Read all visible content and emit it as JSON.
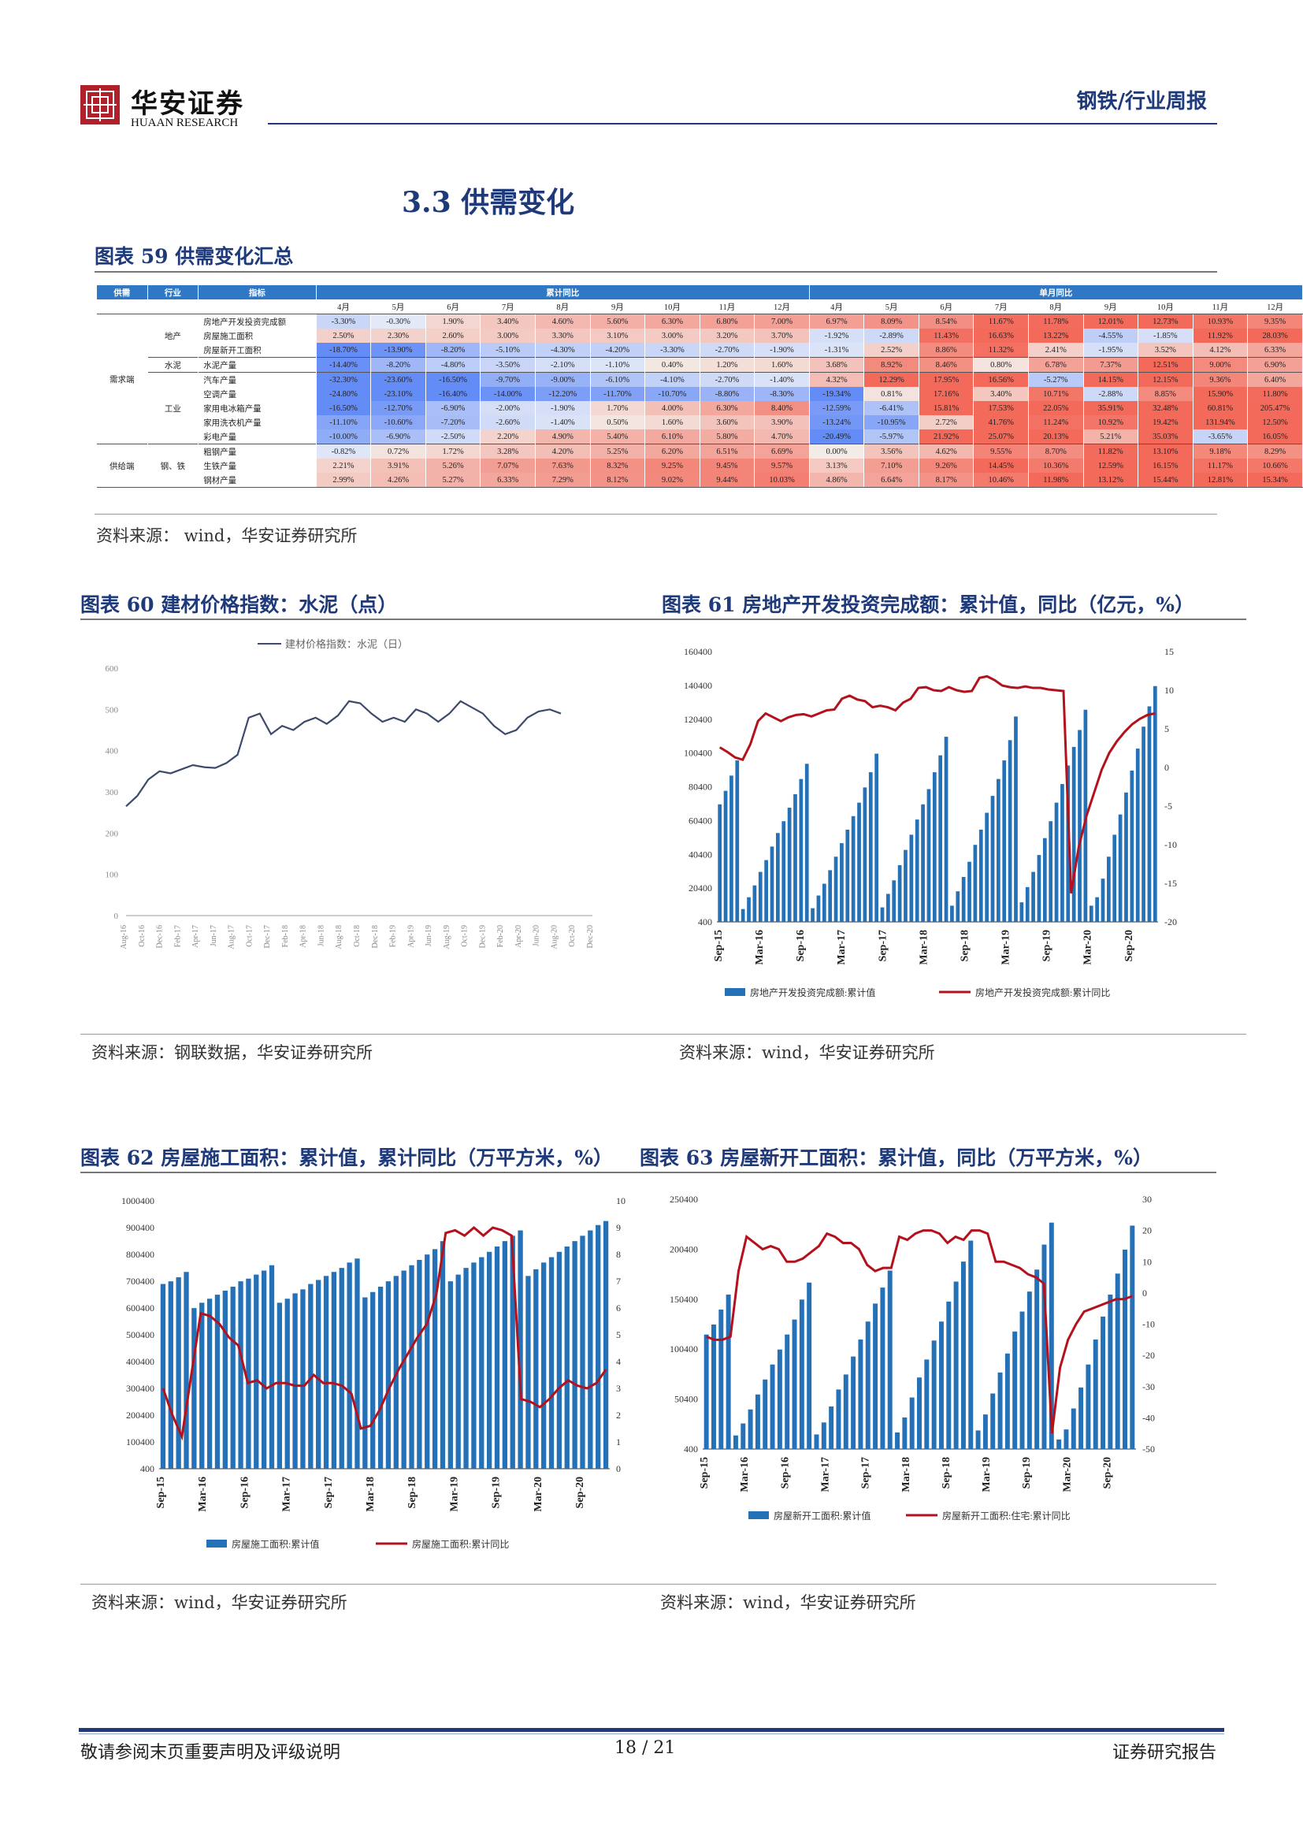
{
  "header": {
    "logo_cn": "华安证券",
    "logo_en": "HUAAN RESEARCH",
    "category": "钢铁/行业周报"
  },
  "section_title": "3.3 供需变化",
  "figure59": {
    "title": "图表 59  供需变化汇总",
    "col_supply": "供需",
    "col_industry": "行业",
    "col_indicator": "指标",
    "group_cum": "累计同比",
    "group_month": "单月同比",
    "months": [
      "4月",
      "5月",
      "6月",
      "7月",
      "8月",
      "9月",
      "10月",
      "11月",
      "12月",
      "4月",
      "5月",
      "6月",
      "7月",
      "8月",
      "9月",
      "10月",
      "11月",
      "12月"
    ],
    "demand_label": "需求端",
    "supply_label": "供给端",
    "rows": [
      {
        "industry": "",
        "name": "房地产开发投资完成额",
        "values": [
          "-3.30%",
          "-0.30%",
          "1.90%",
          "3.40%",
          "4.60%",
          "5.60%",
          "6.30%",
          "6.80%",
          "7.00%",
          "6.97%",
          "8.09%",
          "8.54%",
          "11.67%",
          "11.78%",
          "12.01%",
          "12.73%",
          "10.93%",
          "9.35%"
        ]
      },
      {
        "industry": "地产",
        "name": "房屋施工面积",
        "values": [
          "2.50%",
          "2.30%",
          "2.60%",
          "3.00%",
          "3.30%",
          "3.10%",
          "3.00%",
          "3.20%",
          "3.70%",
          "-1.92%",
          "-2.89%",
          "11.43%",
          "16.63%",
          "13.22%",
          "-4.55%",
          "-1.85%",
          "11.92%",
          "28.03%"
        ]
      },
      {
        "industry": "",
        "name": "房屋新开工面积",
        "values": [
          "-18.70%",
          "-13.90%",
          "-8.20%",
          "-5.10%",
          "-4.30%",
          "-4.20%",
          "-3.30%",
          "-2.70%",
          "-1.90%",
          "-1.31%",
          "2.52%",
          "8.86%",
          "11.32%",
          "2.41%",
          "-1.95%",
          "3.52%",
          "4.12%",
          "6.33%"
        ]
      },
      {
        "industry": "水泥",
        "name": "水泥产量",
        "values": [
          "-14.40%",
          "-8.20%",
          "-4.80%",
          "-3.50%",
          "-2.10%",
          "-1.10%",
          "0.40%",
          "1.20%",
          "1.60%",
          "3.68%",
          "8.92%",
          "8.46%",
          "0.80%",
          "6.78%",
          "7.37%",
          "12.51%",
          "9.00%",
          "6.90%"
        ]
      },
      {
        "industry": "",
        "name": "汽车产量",
        "values": [
          "-32.30%",
          "-23.60%",
          "-16.50%",
          "-9.70%",
          "-9.00%",
          "-6.10%",
          "-4.10%",
          "-2.70%",
          "-1.40%",
          "4.32%",
          "12.29%",
          "17.95%",
          "16.56%",
          "-5.27%",
          "14.15%",
          "12.15%",
          "9.36%",
          "6.40%"
        ]
      },
      {
        "industry": "",
        "name": "空调产量",
        "values": [
          "-24.80%",
          "-23.10%",
          "-16.40%",
          "-14.00%",
          "-12.20%",
          "-11.70%",
          "-10.70%",
          "-8.80%",
          "-8.30%",
          "-19.34%",
          "0.81%",
          "17.16%",
          "3.40%",
          "10.71%",
          "-2.88%",
          "8.85%",
          "15.90%",
          "11.80%"
        ]
      },
      {
        "industry": "工业",
        "name": "家用电冰箱产量",
        "values": [
          "-16.50%",
          "-12.70%",
          "-6.90%",
          "-2.00%",
          "-1.90%",
          "1.70%",
          "4.00%",
          "6.30%",
          "8.40%",
          "-12.59%",
          "-6.41%",
          "15.81%",
          "17.53%",
          "22.05%",
          "35.91%",
          "32.48%",
          "60.81%",
          "205.47%"
        ]
      },
      {
        "industry": "",
        "name": "家用洗衣机产量",
        "values": [
          "-11.10%",
          "-10.60%",
          "-7.20%",
          "-2.60%",
          "-1.40%",
          "0.50%",
          "1.60%",
          "3.60%",
          "3.90%",
          "-13.24%",
          "-10.95%",
          "2.72%",
          "41.76%",
          "11.24%",
          "10.92%",
          "19.42%",
          "131.94%",
          "12.50%"
        ]
      },
      {
        "industry": "",
        "name": "彩电产量",
        "values": [
          "-10.00%",
          "-6.90%",
          "-2.50%",
          "2.20%",
          "4.90%",
          "5.40%",
          "6.10%",
          "5.80%",
          "4.70%",
          "-20.49%",
          "-5.97%",
          "21.92%",
          "25.07%",
          "20.13%",
          "5.21%",
          "35.03%",
          "-3.65%",
          "16.05%"
        ]
      },
      {
        "industry": "",
        "name": "粗钢产量",
        "values": [
          "-0.82%",
          "0.72%",
          "1.72%",
          "3.28%",
          "4.20%",
          "5.25%",
          "6.20%",
          "6.51%",
          "6.69%",
          "0.00%",
          "3.56%",
          "4.62%",
          "9.55%",
          "8.70%",
          "11.82%",
          "13.10%",
          "9.18%",
          "8.29%"
        ]
      },
      {
        "industry": "钢、铁",
        "name": "生铁产量",
        "values": [
          "2.21%",
          "3.91%",
          "5.26%",
          "7.07%",
          "7.63%",
          "8.32%",
          "9.25%",
          "9.45%",
          "9.57%",
          "3.13%",
          "7.10%",
          "9.26%",
          "14.45%",
          "10.36%",
          "12.59%",
          "16.15%",
          "11.17%",
          "10.66%"
        ]
      },
      {
        "industry": "",
        "name": "钢材产量",
        "values": [
          "2.99%",
          "4.26%",
          "5.27%",
          "6.33%",
          "7.29%",
          "8.12%",
          "9.02%",
          "9.44%",
          "10.03%",
          "4.86%",
          "6.64%",
          "8.17%",
          "10.46%",
          "11.98%",
          "13.12%",
          "15.44%",
          "12.81%",
          "15.34%"
        ]
      }
    ],
    "source": "资料来源：  wind，华安证券研究所"
  },
  "figure60": {
    "title": "图表 60  建材价格指数：水泥（点）",
    "source": "资料来源：钢联数据，华安证券研究所"
  },
  "figure61": {
    "title": "图表 61  房地产开发投资完成额：累计值，同比（亿元，%）",
    "source": "资料来源：wind，华安证券研究所"
  },
  "figure62": {
    "title": "图表 62  房屋施工面积：累计值，累计同比（万平方米，%）",
    "source": "资料来源：wind，华安证券研究所"
  },
  "figure63": {
    "title": "图表 63  房屋新开工面积：累计值，同比（万平方米，%）",
    "source": "资料来源：wind，华安证券研究所"
  },
  "chart_data": [
    {
      "type": "line",
      "legend": [
        "建材价格指数：水泥（日）"
      ],
      "ylim": [
        0,
        600
      ],
      "yticks": [
        0,
        100,
        200,
        300,
        400,
        500,
        600
      ],
      "xticks": [
        "Aug-16",
        "Oct-16",
        "Dec-16",
        "Feb-17",
        "Apr-17",
        "Jun-17",
        "Aug-17",
        "Oct-17",
        "Dec-17",
        "Feb-18",
        "Apr-18",
        "Jun-18",
        "Aug-18",
        "Oct-18",
        "Dec-18",
        "Feb-19",
        "Apr-19",
        "Jun-19",
        "Aug-19",
        "Oct-19",
        "Dec-19",
        "Feb-20",
        "Apr-20",
        "Jun-20",
        "Aug-20",
        "Oct-20",
        "Dec-20"
      ],
      "series": [
        {
          "name": "建材价格指数：水泥（日）",
          "color": "#3d4a6b",
          "values": [
            265,
            290,
            330,
            350,
            345,
            355,
            365,
            360,
            358,
            370,
            390,
            480,
            490,
            440,
            460,
            450,
            470,
            480,
            465,
            485,
            520,
            515,
            490,
            470,
            480,
            470,
            500,
            490,
            470,
            490,
            520,
            505,
            490,
            460,
            440,
            450,
            480,
            495,
            500,
            490
          ]
        }
      ]
    },
    {
      "type": "bar+line",
      "ylim_left": [
        400,
        160400
      ],
      "yticks_left": [
        400,
        20400,
        40400,
        60400,
        80400,
        100400,
        120400,
        140400,
        160400
      ],
      "ylim_right": [
        -20,
        15
      ],
      "yticks_right": [
        -20,
        -15,
        -10,
        -5,
        0,
        5,
        10,
        15
      ],
      "xticks": [
        "Sep-15",
        "Mar-16",
        "Sep-16",
        "Mar-17",
        "Sep-17",
        "Mar-18",
        "Sep-18",
        "Mar-19",
        "Sep-19",
        "Mar-20",
        "Sep-20"
      ],
      "series": [
        {
          "name": "房地产开发投资完成额:累计值",
          "type": "bar",
          "color": "#2471b8",
          "values": [
            70000,
            78000,
            87000,
            96000,
            8000,
            15000,
            22000,
            30000,
            37000,
            45000,
            53000,
            60000,
            68000,
            76000,
            85000,
            94000,
            8500,
            16000,
            23000,
            31000,
            39000,
            47000,
            55000,
            63000,
            71000,
            80000,
            89000,
            100000,
            9000,
            17000,
            25000,
            34000,
            43000,
            52000,
            61000,
            70000,
            79000,
            89000,
            99000,
            110000,
            10000,
            18500,
            27000,
            36000,
            46000,
            55000,
            65000,
            75000,
            85000,
            96000,
            108000,
            122000,
            12000,
            21000,
            30000,
            40000,
            50000,
            60000,
            71000,
            82000,
            93000,
            104000,
            114000,
            126000,
            10000,
            15000,
            26000,
            39000,
            52000,
            64000,
            77000,
            90000,
            103000,
            116000,
            128000,
            140000
          ]
        },
        {
          "name": "房地产开发投资完成额:累计同比",
          "type": "line",
          "axis": "right",
          "color": "#b3121d",
          "values": [
            2.6,
            2.0,
            1.3,
            1.0,
            3.0,
            6.0,
            7.0,
            6.5,
            6.0,
            6.5,
            6.8,
            6.9,
            6.6,
            7.0,
            7.4,
            7.5,
            8.9,
            9.3,
            8.8,
            8.6,
            7.8,
            8.0,
            7.8,
            7.4,
            8.4,
            8.9,
            10.3,
            10.4,
            10.0,
            9.9,
            10.4,
            10.0,
            9.8,
            9.9,
            11.6,
            11.8,
            11.3,
            10.6,
            10.4,
            10.3,
            10.5,
            10.3,
            10.3,
            10.1,
            10.0,
            9.9,
            -16.3,
            -10.3,
            -6.3,
            -3.3,
            -0.3,
            1.9,
            3.4,
            4.6,
            5.6,
            6.3,
            6.8,
            7.0
          ]
        }
      ]
    },
    {
      "type": "bar+line",
      "ylim_left": [
        400,
        1000400
      ],
      "yticks_left": [
        400,
        100400,
        200400,
        300400,
        400400,
        500400,
        600400,
        700400,
        800400,
        900400,
        1000400
      ],
      "ylim_right": [
        0,
        10
      ],
      "yticks_right": [
        0,
        1,
        2,
        3,
        4,
        5,
        6,
        7,
        8,
        9,
        10
      ],
      "xticks": [
        "Sep-15",
        "Mar-16",
        "Sep-16",
        "Mar-17",
        "Sep-17",
        "Mar-18",
        "Sep-18",
        "Mar-19",
        "Sep-19",
        "Mar-20",
        "Sep-20"
      ],
      "series": [
        {
          "name": "房屋施工面积:累计值",
          "type": "bar",
          "color": "#2471b8",
          "values": [
            690000,
            700000,
            715000,
            735000,
            600000,
            620000,
            635000,
            650000,
            665000,
            680000,
            700000,
            710000,
            725000,
            740000,
            760000,
            620000,
            635000,
            655000,
            670000,
            690000,
            705000,
            720000,
            735000,
            750000,
            770000,
            785000,
            640000,
            660000,
            680000,
            700000,
            720000,
            740000,
            760000,
            780000,
            800000,
            820000,
            850000,
            700000,
            725000,
            750000,
            770000,
            790000,
            810000,
            830000,
            850000,
            870000,
            890000,
            720000,
            745000,
            770000,
            790000,
            810000,
            830000,
            850000,
            870000,
            890000,
            910000,
            925000
          ]
        },
        {
          "name": "房屋施工面积:累计同比",
          "type": "line",
          "axis": "right",
          "color": "#b3121d",
          "values": [
            3.0,
            2.0,
            1.2,
            3.5,
            5.8,
            5.7,
            5.4,
            4.9,
            4.6,
            3.2,
            3.3,
            3.0,
            3.2,
            3.2,
            3.1,
            3.1,
            3.5,
            3.2,
            3.2,
            3.1,
            2.8,
            1.5,
            1.6,
            2.2,
            3.0,
            3.7,
            4.3,
            4.9,
            5.4,
            6.5,
            8.8,
            8.9,
            8.7,
            9.0,
            8.7,
            9.0,
            8.9,
            8.7,
            2.6,
            2.5,
            2.3,
            2.6,
            3.0,
            3.3,
            3.1,
            3.0,
            3.2,
            3.7
          ]
        }
      ]
    },
    {
      "type": "bar+line",
      "ylim_left": [
        400,
        250400
      ],
      "yticks_left": [
        400,
        50400,
        100400,
        150400,
        200400,
        250400
      ],
      "ylim_right": [
        -50,
        30
      ],
      "yticks_right": [
        -50,
        -40,
        -30,
        -20,
        -10,
        0,
        10,
        20,
        30
      ],
      "xticks": [
        "Sep-15",
        "Mar-16",
        "Sep-16",
        "Mar-17",
        "Sep-17",
        "Mar-18",
        "Sep-18",
        "Mar-19",
        "Sep-19",
        "Mar-20",
        "Sep-20"
      ],
      "series": [
        {
          "name": "房屋新开工面积:累计值",
          "type": "bar",
          "color": "#2471b8",
          "values": [
            115000,
            125000,
            140000,
            155000,
            14000,
            26000,
            40000,
            55000,
            70000,
            85000,
            100000,
            115000,
            130000,
            150000,
            167000,
            15000,
            27000,
            43000,
            60000,
            75000,
            93000,
            110000,
            128000,
            146000,
            162000,
            179000,
            17000,
            32000,
            52000,
            72000,
            90000,
            109000,
            128000,
            148000,
            168000,
            188000,
            209000,
            19000,
            35000,
            56000,
            77000,
            96000,
            118000,
            138000,
            158000,
            180000,
            205000,
            227000,
            10000,
            20000,
            41000,
            62000,
            85000,
            110000,
            133000,
            155000,
            176000,
            200000,
            224000
          ]
        },
        {
          "name": "房屋新开工面积:住宅:累计同比",
          "type": "line",
          "axis": "right",
          "color": "#b3121d",
          "values": [
            -14,
            -15,
            -15,
            -14,
            7,
            18,
            16,
            14,
            15,
            14,
            10,
            10,
            11,
            13,
            15,
            19,
            18,
            16,
            16,
            14,
            9,
            7,
            8,
            8,
            18,
            17,
            19,
            20,
            20,
            19,
            16,
            18,
            17,
            20,
            20,
            19,
            10,
            10,
            9,
            8,
            6,
            5,
            3,
            -45,
            -24,
            -15,
            -10,
            -6,
            -5,
            -4,
            -3,
            -2,
            -2,
            -1
          ]
        }
      ]
    }
  ]
}
